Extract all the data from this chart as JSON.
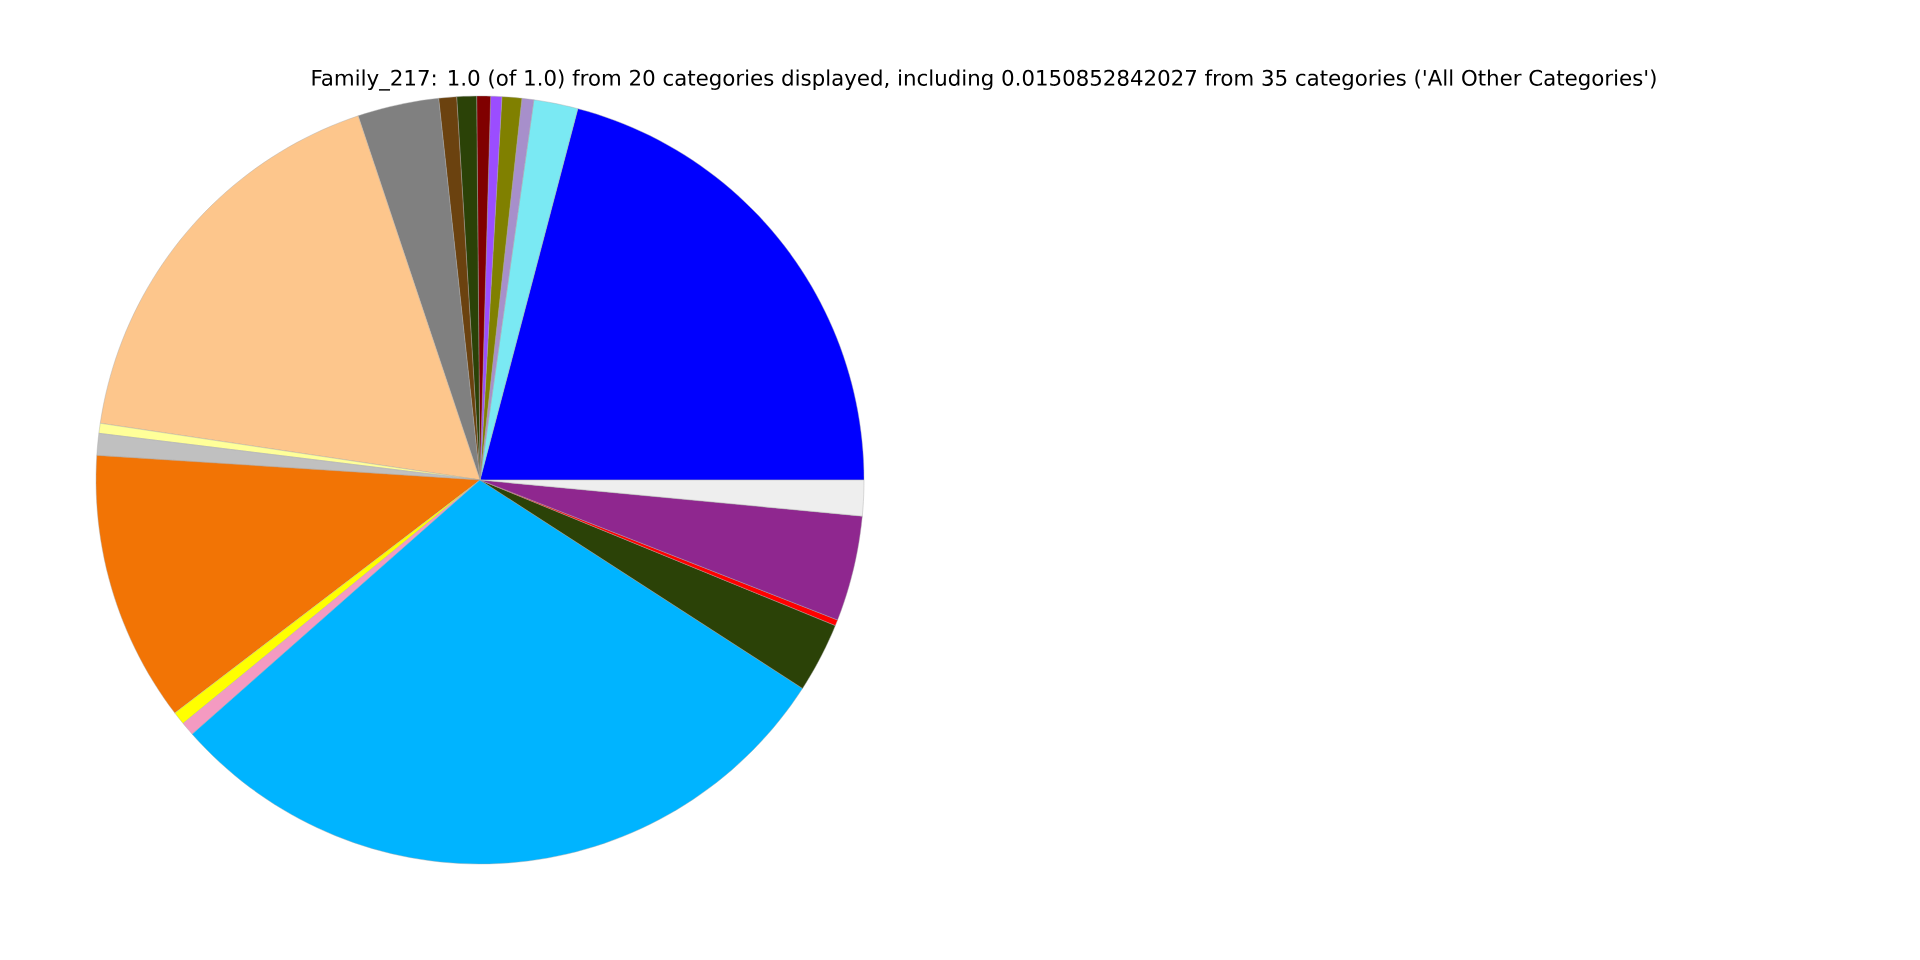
{
  "chart_data": {
    "type": "pie",
    "title": "Family_217: 1.0 (of 1.0) from 20 categories displayed, including 0.0150852842027 from 35 categories ('All Other Categories')",
    "categories": [
      null,
      null,
      null,
      null,
      null,
      null,
      null,
      null,
      null,
      null,
      null,
      null,
      null,
      null,
      null,
      null,
      null,
      null,
      null,
      null
    ],
    "values": [
      20.9,
      1.86,
      0.5,
      0.83,
      0.47,
      0.58,
      0.83,
      0.75,
      3.42,
      17.5,
      0.42,
      0.92,
      11.4,
      0.55,
      0.58,
      29.36,
      2.94,
      0.25,
      4.44,
      1.5
    ],
    "colors": [
      "#0000ff",
      "#7ae9f3",
      "#a78fcb",
      "#808000",
      "#9b4dff",
      "#800000",
      "#2b4207",
      "#6b420f",
      "#808080",
      "#fdc68c",
      "#ffff99",
      "#c0c0c0",
      "#f27405",
      "#ffff00",
      "#f49ac1",
      "#00b4ff",
      "#2b4207",
      "#ff0000",
      "#8f278f",
      "#eeeeee"
    ]
  }
}
